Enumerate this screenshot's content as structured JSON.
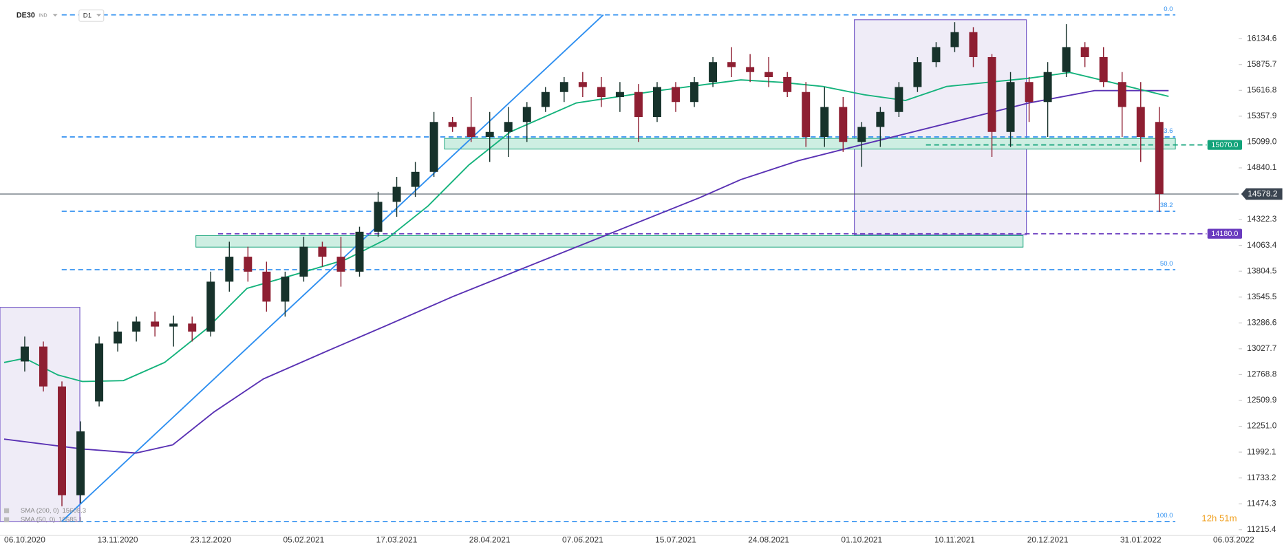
{
  "chart_data": {
    "type": "candlestick",
    "symbol": "DE30",
    "market": "IND",
    "interval": "D1",
    "countdown": "12h 51m",
    "xlim": [
      -1.33,
      65.27
    ],
    "ylim": [
      11157,
      16522
    ],
    "xticks": [
      {
        "value": 0,
        "label": "06.10.2020"
      },
      {
        "value": 5,
        "label": "13.11.2020"
      },
      {
        "value": 10,
        "label": "23.12.2020"
      },
      {
        "value": 15,
        "label": "05.02.2021"
      },
      {
        "value": 20,
        "label": "17.03.2021"
      },
      {
        "value": 25,
        "label": "28.04.2021"
      },
      {
        "value": 30,
        "label": "07.06.2021"
      },
      {
        "value": 35,
        "label": "15.07.2021"
      },
      {
        "value": 40,
        "label": "24.08.2021"
      },
      {
        "value": 45,
        "label": "01.10.2021"
      },
      {
        "value": 50,
        "label": "10.11.2021"
      },
      {
        "value": 55,
        "label": "20.12.2021"
      },
      {
        "value": 60,
        "label": "31.01.2022"
      },
      {
        "value": 65,
        "label": "06.03.2022"
      }
    ],
    "yticks": [
      16134.6,
      15875.7,
      15616.8,
      15357.9,
      {
        "value": 15099,
        "label": "15099.0"
      },
      14840.1,
      14322.3,
      14063.4,
      13804.5,
      13545.5,
      13286.6,
      13027.7,
      12768.8,
      12509.9,
      {
        "value": 12251,
        "label": "12251.0"
      },
      11992.1,
      11733.2,
      11474.3,
      11215.4
    ],
    "candles": {
      "up_color": "#17322b",
      "down_color": "#8e1f32",
      "open": [
        12900,
        13050,
        12650,
        11560,
        12500,
        13080,
        13200,
        13300,
        13250,
        13280,
        13200,
        13700,
        13950,
        13800,
        13500,
        13750,
        14050,
        13950,
        13800,
        14200,
        14500,
        14650,
        14800,
        15300,
        15250,
        15150,
        15200,
        15300,
        15450,
        15600,
        15700,
        15650,
        15550,
        15600,
        15350,
        15650,
        15500,
        15700,
        15900,
        15850,
        15800,
        15750,
        15600,
        15150,
        15450,
        15100,
        15250,
        15400,
        15650,
        15900,
        16050,
        16200,
        15950,
        15200,
        15700,
        15500,
        15800,
        16050,
        15950,
        15700,
        15450,
        15300
      ],
      "high": [
        13150,
        13100,
        12700,
        12300,
        13150,
        13300,
        13350,
        13400,
        13360,
        13350,
        13800,
        14100,
        14050,
        13900,
        13800,
        14150,
        14100,
        14150,
        14250,
        14600,
        14750,
        14900,
        15400,
        15350,
        15550,
        15400,
        15450,
        15500,
        15650,
        15750,
        15800,
        15750,
        15700,
        15680,
        15700,
        15700,
        15750,
        15950,
        16050,
        15980,
        15950,
        15800,
        15700,
        15650,
        15550,
        15300,
        15450,
        15700,
        15950,
        16100,
        16300,
        16250,
        15980,
        15800,
        15750,
        15900,
        16280,
        16100,
        16050,
        15800,
        15700,
        15450
      ],
      "low": [
        12800,
        12600,
        11450,
        11480,
        12450,
        13000,
        13100,
        13150,
        13050,
        13100,
        13150,
        13600,
        13700,
        13400,
        13350,
        13700,
        13850,
        13650,
        13750,
        14150,
        14350,
        14550,
        14750,
        15200,
        15100,
        14900,
        14950,
        15100,
        15400,
        15500,
        15550,
        15450,
        15400,
        15100,
        15300,
        15400,
        15450,
        15650,
        15750,
        15700,
        15650,
        15550,
        15050,
        15050,
        15000,
        14850,
        15050,
        15350,
        15600,
        15850,
        16000,
        15850,
        14950,
        15050,
        15300,
        15150,
        15750,
        15850,
        15650,
        15150,
        14900,
        14400
      ],
      "close": [
        13050,
        12650,
        11560,
        12200,
        13080,
        13200,
        13300,
        13250,
        13280,
        13200,
        13700,
        13950,
        13800,
        13500,
        13750,
        14050,
        13950,
        13800,
        14200,
        14500,
        14650,
        14800,
        15300,
        15250,
        15150,
        15200,
        15300,
        15450,
        15600,
        15700,
        15650,
        15550,
        15600,
        15350,
        15650,
        15500,
        15700,
        15900,
        15850,
        15800,
        15750,
        15600,
        15150,
        15450,
        15100,
        15250,
        15400,
        15650,
        15900,
        16050,
        16200,
        15950,
        15200,
        15700,
        15500,
        15800,
        16050,
        15950,
        15700,
        15450,
        15150,
        14578.2
      ]
    },
    "series": [
      {
        "name": "SMA (200, 0)",
        "legend_value": "15605.3",
        "color": "#5a32b4",
        "x": [
          -1.11,
          3.1,
          5.97,
          7.96,
          10.18,
          12.83,
          16.37,
          19.47,
          23.01,
          27.43,
          31.86,
          36.28,
          38.5,
          41.59,
          45.13,
          49.56,
          53.98,
          57.52,
          61.5
        ],
        "values": [
          12123,
          12024,
          11982,
          12065,
          12395,
          12725,
          13014,
          13262,
          13550,
          13881,
          14211,
          14541,
          14723,
          14912,
          15078,
          15284,
          15490,
          15614,
          15614
        ]
      },
      {
        "name": "SMA (50, 0)",
        "legend_value": "15585.1",
        "color": "#15b37c",
        "x": [
          -1.11,
          0,
          1.77,
          3.1,
          5.31,
          7.52,
          9.73,
          11.95,
          15.04,
          17.26,
          19.47,
          21.68,
          23.89,
          26.11,
          29.65,
          34.07,
          38.5,
          40.71,
          42.92,
          45.13,
          47.35,
          49.56,
          51.77,
          53.98,
          56.19,
          58.41,
          61.5
        ],
        "values": [
          12890,
          12932,
          12766,
          12700,
          12709,
          12890,
          13220,
          13633,
          13798,
          13922,
          14128,
          14458,
          14871,
          15201,
          15490,
          15614,
          15721,
          15697,
          15655,
          15573,
          15515,
          15655,
          15697,
          15738,
          15796,
          15697,
          15556
        ]
      }
    ],
    "fib_levels": {
      "color": "#2e8ff0",
      "levels": [
        {
          "label": "0.0",
          "value": 16373
        },
        {
          "label": "23.6",
          "value": 15150
        },
        {
          "label": "38.2",
          "value": 14405
        },
        {
          "label": "50.0",
          "value": 13820
        },
        {
          "label": "100.0",
          "value": 11297
        }
      ]
    },
    "price_lines": [
      {
        "value": 15070,
        "label": "15070.0",
        "color": "#12a37a"
      },
      {
        "value": 14180,
        "label": "14180.0",
        "color": "#6a3bbf"
      },
      {
        "value": 14578.2,
        "color": "#3a4450"
      }
    ]
  }
}
